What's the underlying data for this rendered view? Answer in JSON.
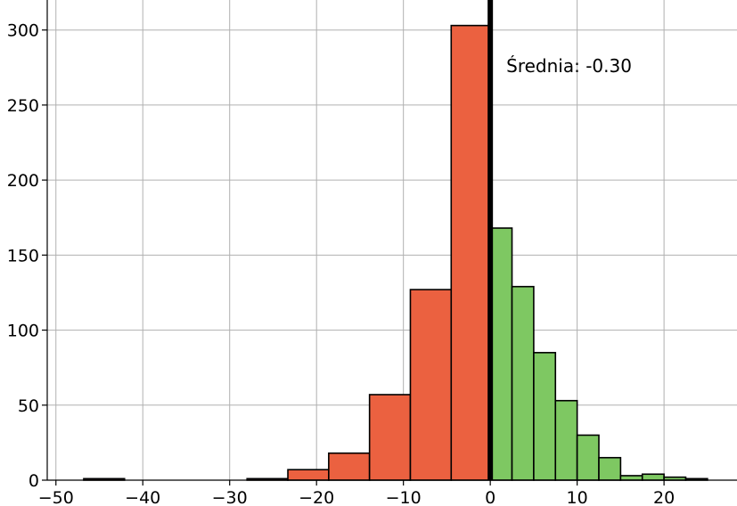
{
  "chart_data": {
    "type": "bar",
    "title": "",
    "xlabel": "",
    "ylabel": "",
    "xlim": [
      -51,
      28.4
    ],
    "ylim": [
      0,
      320
    ],
    "grid": true,
    "xticks": [
      -50,
      -40,
      -30,
      -20,
      -10,
      0,
      10,
      20
    ],
    "xtick_labels": [
      "−50",
      "−40",
      "−30",
      "−20",
      "−10",
      "0",
      "10",
      "20"
    ],
    "yticks": [
      0,
      50,
      100,
      150,
      200,
      250,
      300
    ],
    "ytick_labels": [
      "0",
      "50",
      "100",
      "150",
      "200",
      "250",
      "300"
    ],
    "negative_color": "#eb6140",
    "positive_color": "#7ec862",
    "bins": [
      {
        "from": -46.8,
        "to": -42.1,
        "count": 1,
        "group": "negative"
      },
      {
        "from": -42.1,
        "to": -37.4,
        "count": 0,
        "group": "negative"
      },
      {
        "from": -37.4,
        "to": -32.7,
        "count": 0,
        "group": "negative"
      },
      {
        "from": -32.7,
        "to": -28.0,
        "count": 0,
        "group": "negative"
      },
      {
        "from": -28.0,
        "to": -23.3,
        "count": 1,
        "group": "negative"
      },
      {
        "from": -23.3,
        "to": -18.6,
        "count": 7,
        "group": "negative"
      },
      {
        "from": -18.6,
        "to": -13.9,
        "count": 18,
        "group": "negative"
      },
      {
        "from": -13.9,
        "to": -9.2,
        "count": 57,
        "group": "negative"
      },
      {
        "from": -9.2,
        "to": -4.5,
        "count": 127,
        "group": "negative"
      },
      {
        "from": -4.5,
        "to": 0.0,
        "count": 303,
        "group": "negative"
      },
      {
        "from": 0.0,
        "to": 2.5,
        "count": 168,
        "group": "positive"
      },
      {
        "from": 2.5,
        "to": 5.0,
        "count": 129,
        "group": "positive"
      },
      {
        "from": 5.0,
        "to": 7.5,
        "count": 85,
        "group": "positive"
      },
      {
        "from": 7.5,
        "to": 10.0,
        "count": 53,
        "group": "positive"
      },
      {
        "from": 10.0,
        "to": 12.5,
        "count": 30,
        "group": "positive"
      },
      {
        "from": 12.5,
        "to": 15.0,
        "count": 15,
        "group": "positive"
      },
      {
        "from": 15.0,
        "to": 17.5,
        "count": 3,
        "group": "positive"
      },
      {
        "from": 17.5,
        "to": 20.0,
        "count": 4,
        "group": "positive"
      },
      {
        "from": 20.0,
        "to": 22.5,
        "count": 2,
        "group": "positive"
      },
      {
        "from": 22.5,
        "to": 25.0,
        "count": 1,
        "group": "positive"
      }
    ],
    "mean": -0.3,
    "mean_line_x": 0,
    "mean_label": "Średnia: -0.30"
  }
}
